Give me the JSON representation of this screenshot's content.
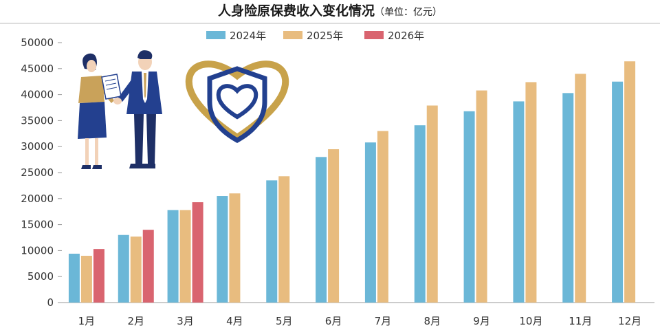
{
  "title": "人身险原保费收入变化情况",
  "subtitle": "（单位：亿元）",
  "colors": {
    "2024年": "#6bb7d7",
    "2025年": "#e8bc7f",
    "2026年": "#d9646f",
    "axis": "#999999",
    "heart_gold": "#c8a24a",
    "shield_navy": "#22408f"
  },
  "illustration_icons": [
    "handshake-people-icon",
    "heart-shield-icon"
  ],
  "chart_data": {
    "type": "bar",
    "title": "人身险原保费收入变化情况",
    "subtitle": "（单位：亿元）",
    "xlabel": "",
    "ylabel": "",
    "categories": [
      "1月",
      "2月",
      "3月",
      "4月",
      "5月",
      "6月",
      "7月",
      "8月",
      "9月",
      "10月",
      "11月",
      "12月"
    ],
    "ylim": [
      0,
      50000
    ],
    "yticks": [
      0,
      5000,
      10000,
      15000,
      20000,
      25000,
      30000,
      35000,
      40000,
      45000,
      50000
    ],
    "grid": false,
    "legend": "top-center",
    "series": [
      {
        "name": "2024年",
        "values": [
          9400,
          13000,
          17800,
          20500,
          23500,
          28000,
          30800,
          34100,
          36800,
          38700,
          40300,
          42500
        ]
      },
      {
        "name": "2025年",
        "values": [
          9000,
          12700,
          17800,
          21000,
          24300,
          29500,
          33000,
          37900,
          40800,
          42400,
          44000,
          46400
        ]
      },
      {
        "name": "2026年",
        "values": [
          10300,
          14000,
          19300,
          null,
          null,
          null,
          null,
          null,
          null,
          null,
          null,
          null
        ]
      }
    ]
  }
}
